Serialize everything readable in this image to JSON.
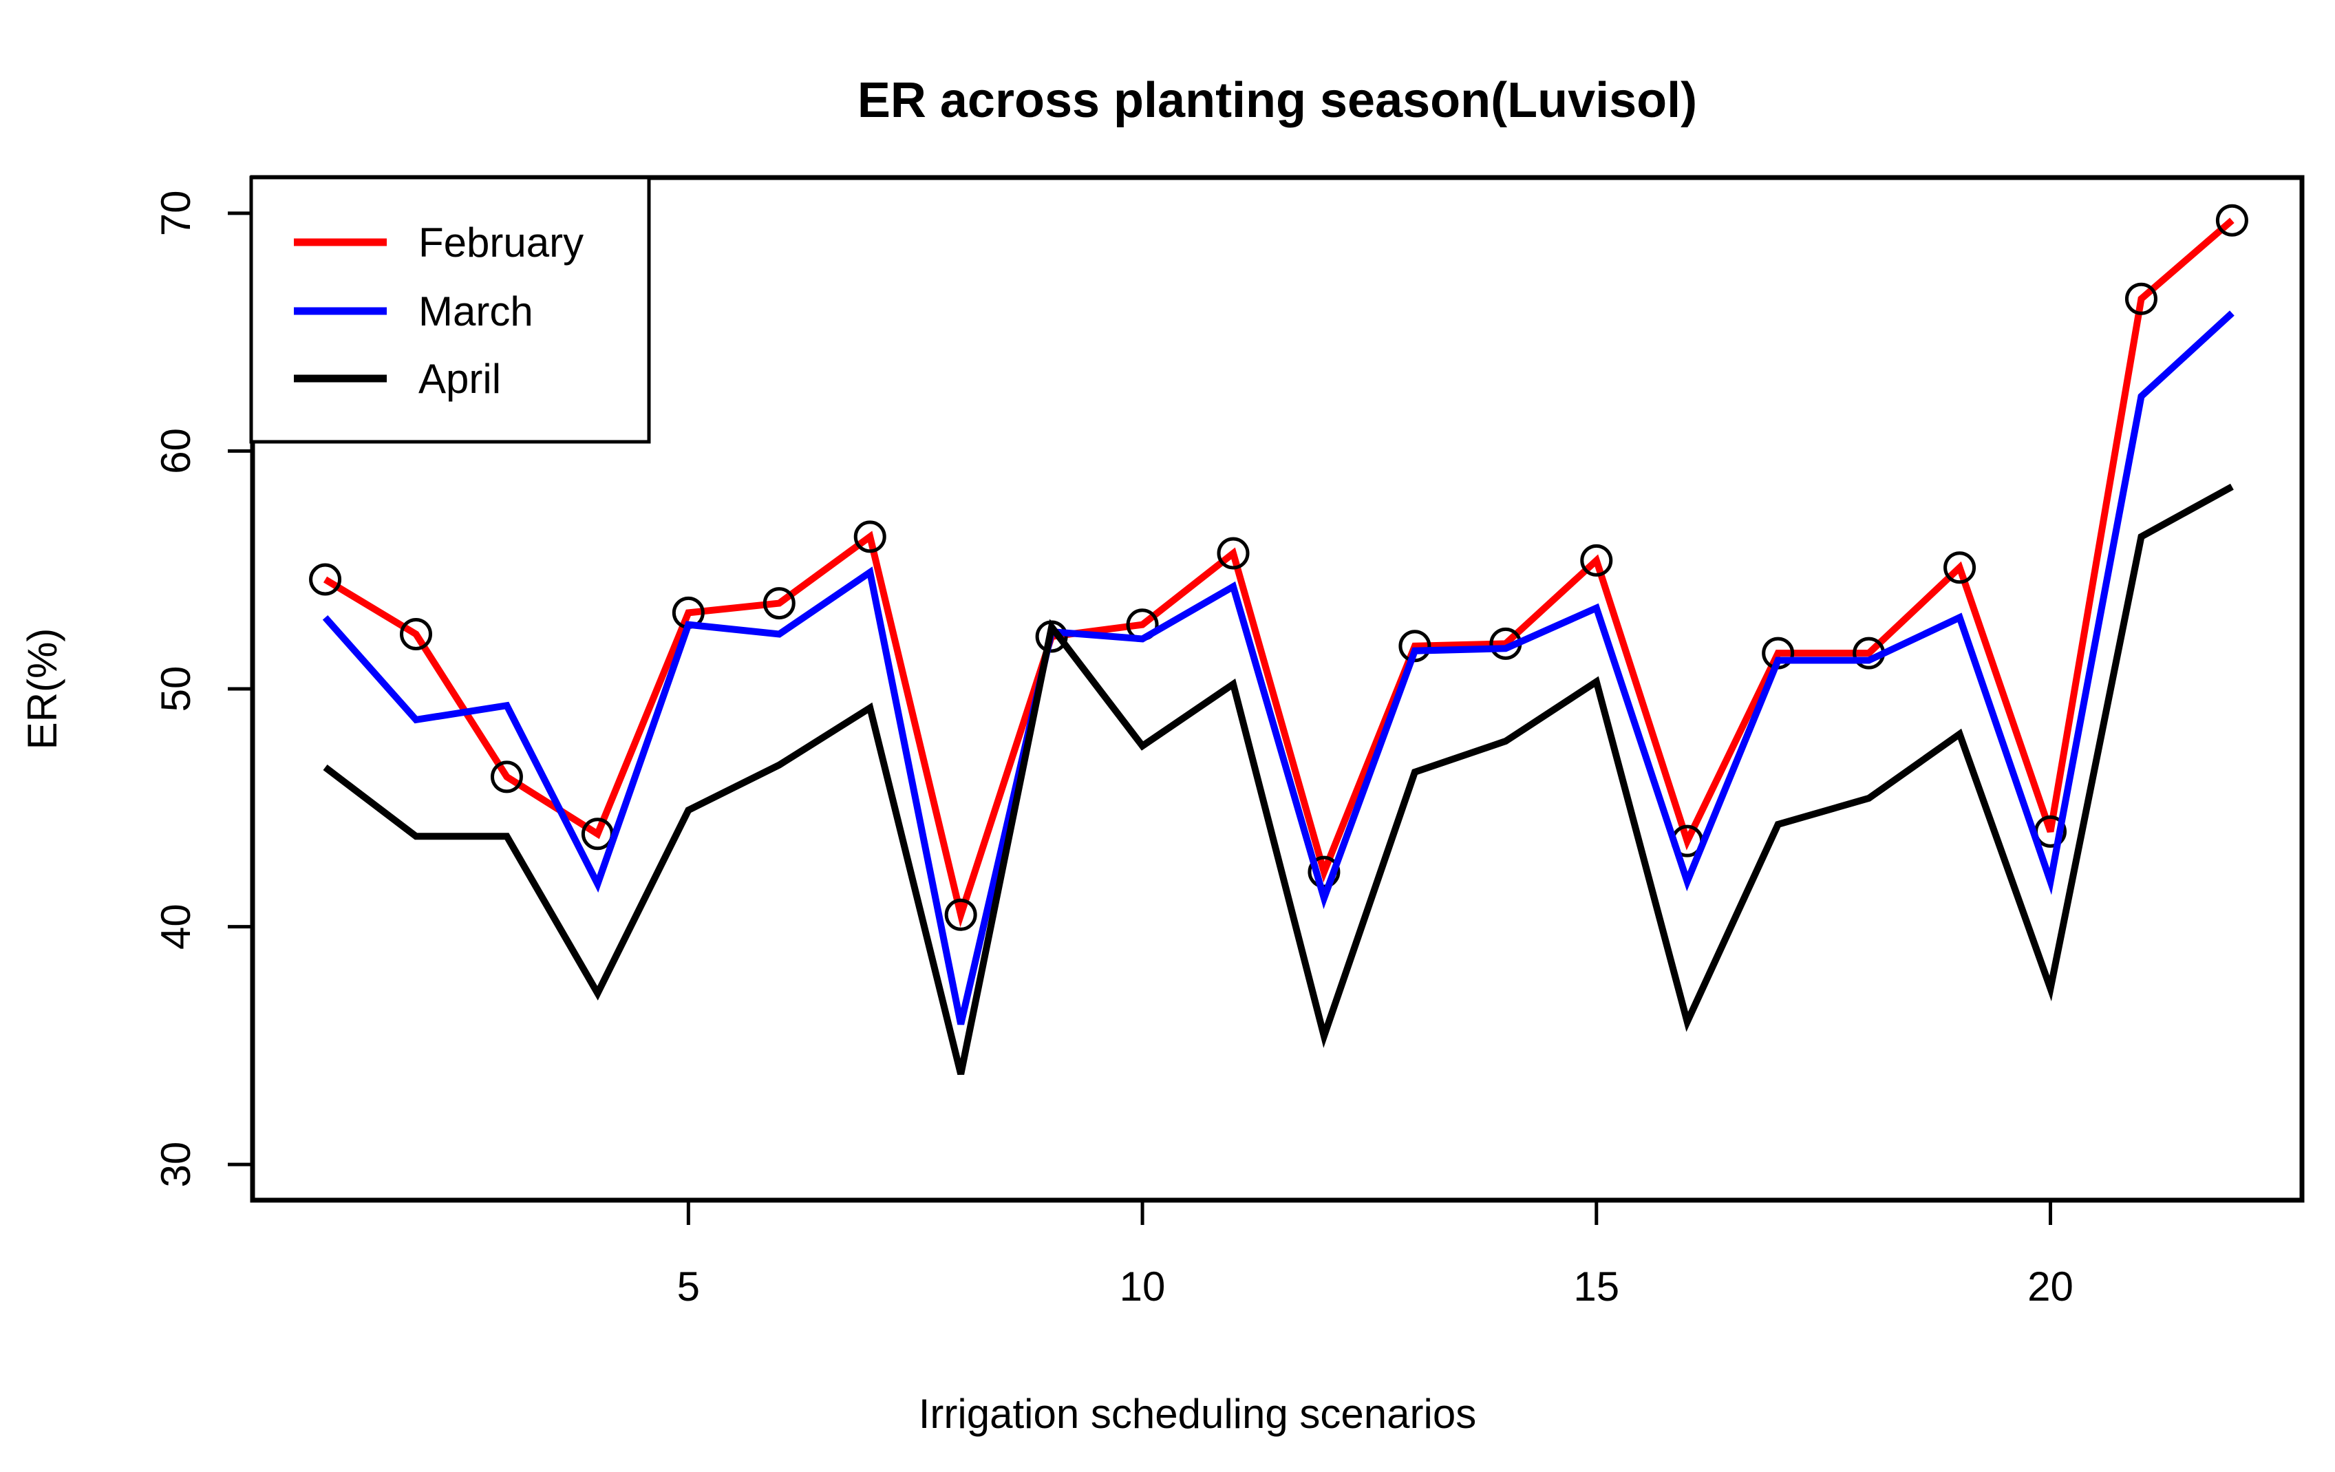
{
  "chart_data": {
    "type": "line",
    "title": "ER across planting season(Luvisol)",
    "xlabel": "Irrigation scheduling scenarios",
    "ylabel": "ER(%)",
    "x": [
      1,
      2,
      3,
      4,
      5,
      6,
      7,
      8,
      9,
      10,
      11,
      12,
      13,
      14,
      15,
      16,
      17,
      18,
      19,
      20,
      21,
      22
    ],
    "series": [
      {
        "name": "February",
        "color": "#ff0000",
        "marker": "open-circle",
        "marker_color": "#000000",
        "values": [
          54.6,
          52.3,
          46.3,
          43.9,
          53.2,
          53.6,
          56.4,
          40.5,
          52.2,
          52.7,
          55.7,
          42.3,
          51.8,
          51.9,
          55.4,
          43.6,
          51.5,
          51.5,
          55.1,
          44.0,
          66.4,
          69.7
        ]
      },
      {
        "name": "March",
        "color": "#0000ff",
        "marker": "none",
        "values": [
          53.0,
          48.7,
          49.3,
          41.8,
          52.7,
          52.3,
          54.9,
          35.9,
          52.4,
          52.1,
          54.3,
          41.2,
          51.6,
          51.7,
          53.4,
          41.9,
          51.2,
          51.2,
          53.0,
          41.9,
          62.3,
          65.8
        ]
      },
      {
        "name": "April",
        "color": "#000000",
        "marker": "none",
        "values": [
          46.7,
          43.8,
          43.8,
          37.2,
          44.9,
          46.8,
          49.2,
          33.8,
          52.6,
          47.6,
          50.2,
          35.4,
          46.5,
          47.8,
          50.3,
          36.0,
          44.3,
          45.4,
          48.1,
          37.4,
          56.4,
          58.5
        ]
      }
    ],
    "xticks": [
      5,
      10,
      15,
      20
    ],
    "yticks": [
      30,
      40,
      50,
      60,
      70
    ],
    "xlim": [
      0.2,
      22.77
    ],
    "ylim": [
      28.5,
      71.5
    ],
    "grid": false,
    "legend_position": "topleft",
    "background": "#ffffff",
    "axis_color": "#000000"
  },
  "legend": {
    "items": [
      {
        "label": "February",
        "color": "#ff0000"
      },
      {
        "label": "March",
        "color": "#0000ff"
      },
      {
        "label": "April",
        "color": "#000000"
      }
    ]
  }
}
